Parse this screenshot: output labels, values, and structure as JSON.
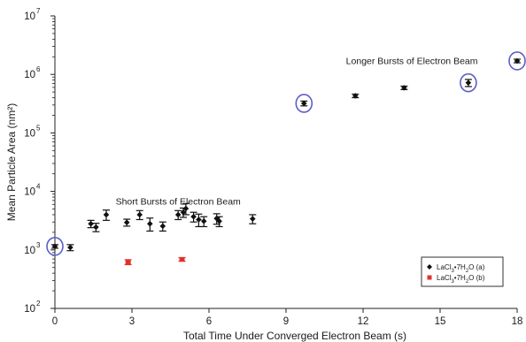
{
  "chart_data": {
    "type": "scatter",
    "xlabel": "Total Time Under Converged Electron Beam (s)",
    "ylabel": "Mean Particle Area (nm²)",
    "xlim": [
      0,
      18
    ],
    "ylim": [
      100,
      10000000
    ],
    "yscale": "log",
    "x_ticks": [
      0,
      3,
      6,
      9,
      12,
      15,
      18
    ],
    "x_tick_labels": [
      "0",
      "3",
      "6",
      "9",
      "12",
      "15",
      "18"
    ],
    "y_ticks": [
      100,
      1000,
      10000,
      100000,
      1000000,
      10000000
    ],
    "y_tick_labels": [
      {
        "base": "10",
        "exp": "2"
      },
      {
        "base": "10",
        "exp": "3"
      },
      {
        "base": "10",
        "exp": "4"
      },
      {
        "base": "10",
        "exp": "5"
      },
      {
        "base": "10",
        "exp": "6"
      },
      {
        "base": "10",
        "exp": "7"
      }
    ],
    "grid": false,
    "legend_position": "bottom-right",
    "annotations": [
      {
        "text": "Short Bursts of Electron Beam",
        "x": 4.8,
        "y": 6000
      },
      {
        "text": "Longer Bursts of Electron Beam",
        "x": 13.9,
        "y": 1500000
      }
    ],
    "circled_points": [
      {
        "x": 0.0,
        "y": 1150
      },
      {
        "x": 9.7,
        "y": 320000
      },
      {
        "x": 16.1,
        "y": 720000
      },
      {
        "x": 18.0,
        "y": 1700000
      }
    ],
    "series": [
      {
        "legend": {
          "prefix": "LaCl",
          "sub1": "3",
          "mid": "•7H",
          "sub2": "2",
          "suffix": "O (a)"
        },
        "color": "#111111",
        "marker": "diamond",
        "points": [
          {
            "x": 0.0,
            "y": 1150,
            "err": 80
          },
          {
            "x": 0.6,
            "y": 1100,
            "err": 130
          },
          {
            "x": 1.4,
            "y": 2800,
            "err": 400
          },
          {
            "x": 1.6,
            "y": 2450,
            "err": 400
          },
          {
            "x": 2.0,
            "y": 4000,
            "err": 800
          },
          {
            "x": 2.8,
            "y": 2950,
            "err": 400
          },
          {
            "x": 3.3,
            "y": 4000,
            "err": 700
          },
          {
            "x": 3.7,
            "y": 2800,
            "err": 700
          },
          {
            "x": 4.2,
            "y": 2550,
            "err": 450
          },
          {
            "x": 4.8,
            "y": 4000,
            "err": 700
          },
          {
            "x": 5.0,
            "y": 4400,
            "err": 800
          },
          {
            "x": 5.1,
            "y": 5100,
            "err": 1100
          },
          {
            "x": 5.4,
            "y": 3700,
            "err": 700
          },
          {
            "x": 5.6,
            "y": 3300,
            "err": 800
          },
          {
            "x": 5.8,
            "y": 3100,
            "err": 600
          },
          {
            "x": 6.3,
            "y": 3450,
            "err": 700
          },
          {
            "x": 6.4,
            "y": 3100,
            "err": 600
          },
          {
            "x": 7.7,
            "y": 3400,
            "err": 600
          },
          {
            "x": 9.7,
            "y": 320000,
            "err": 30000
          },
          {
            "x": 11.7,
            "y": 430000,
            "err": 30000
          },
          {
            "x": 13.6,
            "y": 590000,
            "err": 40000
          },
          {
            "x": 16.1,
            "y": 720000,
            "err": 100000
          },
          {
            "x": 18.0,
            "y": 1700000,
            "err": 120000
          }
        ]
      },
      {
        "legend": {
          "prefix": "LaCl",
          "sub1": "3",
          "mid": "•7H",
          "sub2": "2",
          "suffix": "O (b)"
        },
        "color": "#e0312a",
        "marker": "square",
        "points": [
          {
            "x": 2.85,
            "y": 620,
            "err": 60
          },
          {
            "x": 4.95,
            "y": 690,
            "err": 50
          }
        ]
      }
    ]
  }
}
